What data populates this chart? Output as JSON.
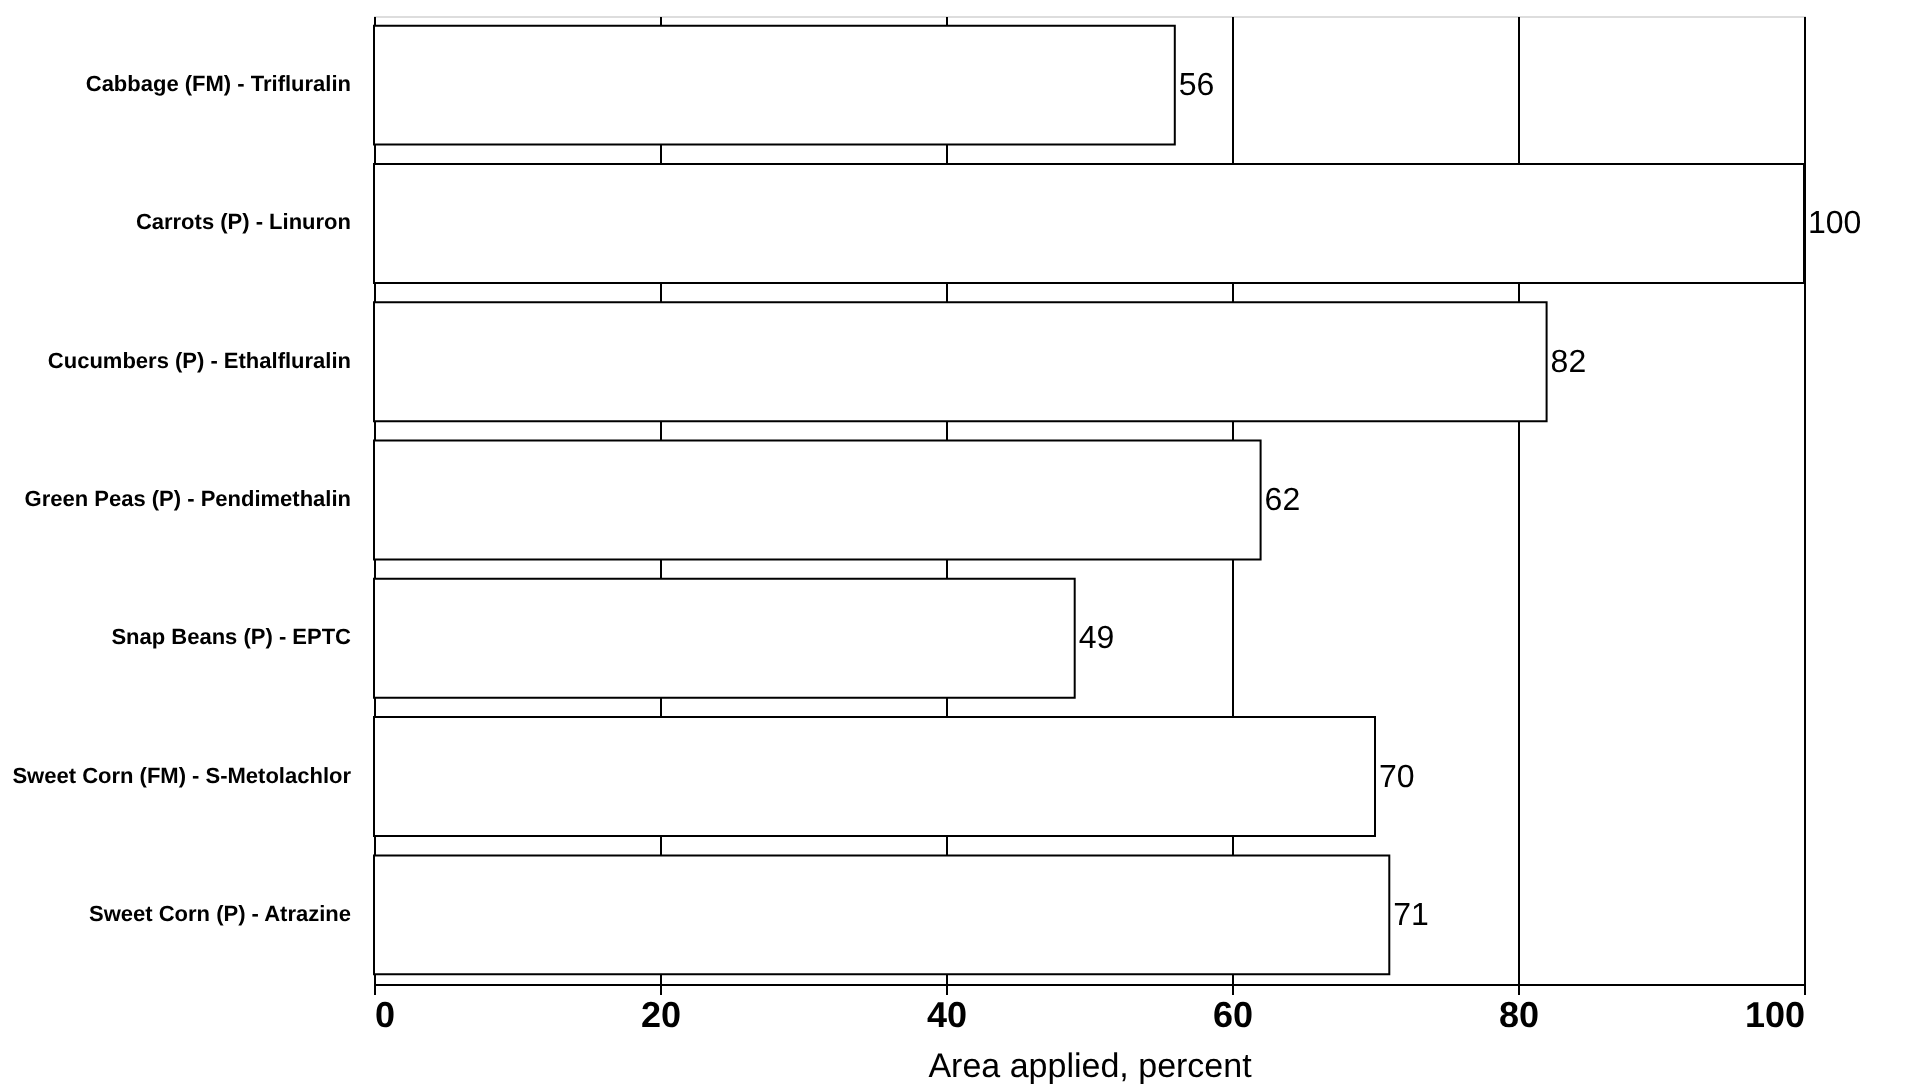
{
  "chart_data": {
    "type": "bar",
    "orientation": "horizontal",
    "xlabel": "Area applied, percent",
    "categories": [
      "Cabbage (FM) - Trifluralin",
      "Carrots (P) - Linuron",
      "Cucumbers (P) - Ethalfluralin",
      "Green Peas (P) - Pendimethalin",
      "Snap Beans (P) - EPTC",
      "Sweet Corn (FM) - S-Metolachlor",
      "Sweet Corn (P) - Atrazine"
    ],
    "values": [
      56,
      100,
      82,
      62,
      49,
      70,
      71
    ],
    "color": "#ffffff",
    "xlim": [
      0,
      100
    ],
    "xticks": [
      0,
      20,
      40,
      60,
      80,
      100
    ],
    "grid": "x",
    "data_labels": true
  }
}
